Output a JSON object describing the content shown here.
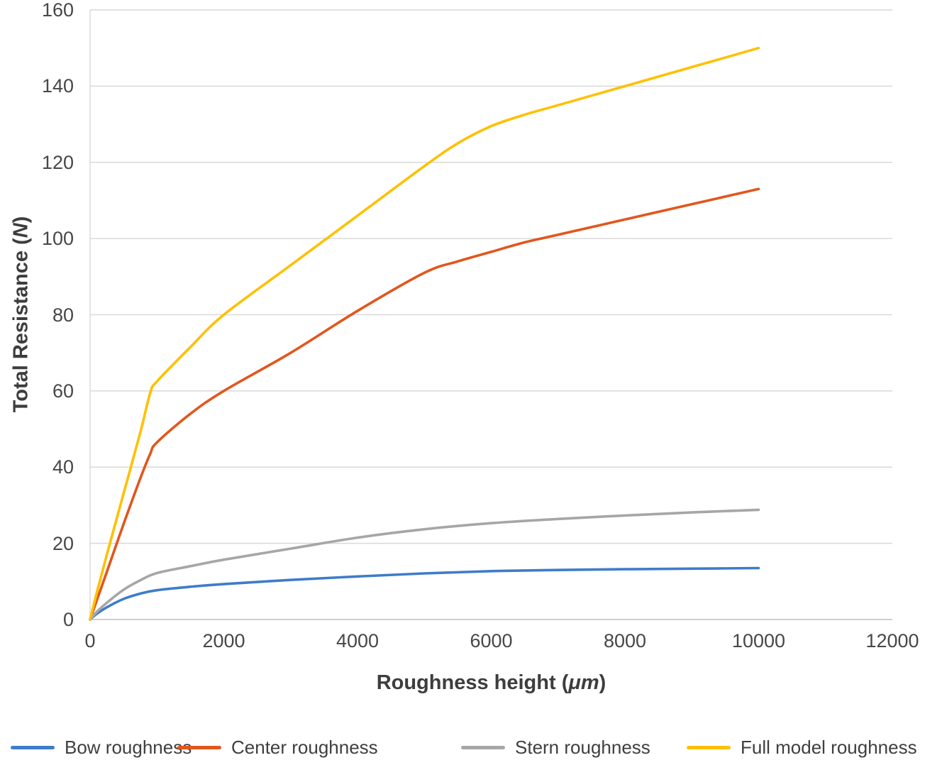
{
  "chart_data": {
    "type": "line",
    "title": "",
    "xlabel_prefix": "Roughness height (",
    "xlabel_italic": "μm",
    "xlabel_suffix": ")",
    "ylabel_prefix": "Total Resistance (",
    "ylabel_italic": "N",
    "ylabel_suffix": ")",
    "xlim": [
      0,
      12000
    ],
    "ylim": [
      0,
      160
    ],
    "x_ticks": [
      0,
      2000,
      4000,
      6000,
      8000,
      10000,
      12000
    ],
    "y_ticks": [
      0,
      20,
      40,
      60,
      80,
      100,
      120,
      140,
      160
    ],
    "grid": "horizontal-only",
    "gridline_color": "#d9d9d9",
    "axis_line_color": "#bfbfbf",
    "legend_position": "bottom",
    "series": [
      {
        "name": "Bow roughness",
        "color": "#3e7cc9",
        "x": [
          0,
          100,
          250,
          500,
          750,
          1000,
          1500,
          2000,
          3000,
          4000,
          5000,
          6000,
          7000,
          8000,
          9000,
          10000
        ],
        "y": [
          0,
          1.5,
          3.2,
          5.4,
          6.8,
          7.7,
          8.6,
          9.3,
          10.4,
          11.3,
          12.1,
          12.7,
          13.0,
          13.2,
          13.35,
          13.5
        ]
      },
      {
        "name": "Center roughness",
        "color": "#e2561d",
        "x": [
          0,
          100,
          250,
          500,
          750,
          900,
          1000,
          1500,
          2000,
          3000,
          4000,
          5000,
          5500,
          6000,
          6500,
          7000,
          8000,
          9000,
          10000
        ],
        "y": [
          0,
          5,
          12.5,
          25,
          37,
          43.5,
          46.5,
          54,
          60,
          70,
          81,
          91,
          94,
          96.5,
          99,
          101,
          105,
          109,
          113
        ]
      },
      {
        "name": "Stern roughness",
        "color": "#a6a6a6",
        "x": [
          0,
          100,
          250,
          500,
          750,
          1000,
          1500,
          2000,
          3000,
          4000,
          5000,
          6000,
          7000,
          8000,
          9000,
          10000
        ],
        "y": [
          0,
          2.0,
          4.4,
          7.8,
          10.3,
          12.2,
          14.0,
          15.7,
          18.6,
          21.5,
          23.7,
          25.3,
          26.4,
          27.3,
          28.1,
          28.8
        ]
      },
      {
        "name": "Full model roughness",
        "color": "#ffc000",
        "x": [
          0,
          100,
          250,
          500,
          750,
          900,
          1000,
          1500,
          2000,
          3000,
          4000,
          5000,
          5500,
          6000,
          6500,
          7000,
          8000,
          9000,
          10000
        ],
        "y": [
          0,
          7,
          17,
          33,
          49,
          59.5,
          62.5,
          71.5,
          80,
          93,
          106,
          119,
          125,
          129.5,
          132.5,
          135,
          140,
          145,
          150
        ]
      }
    ]
  }
}
